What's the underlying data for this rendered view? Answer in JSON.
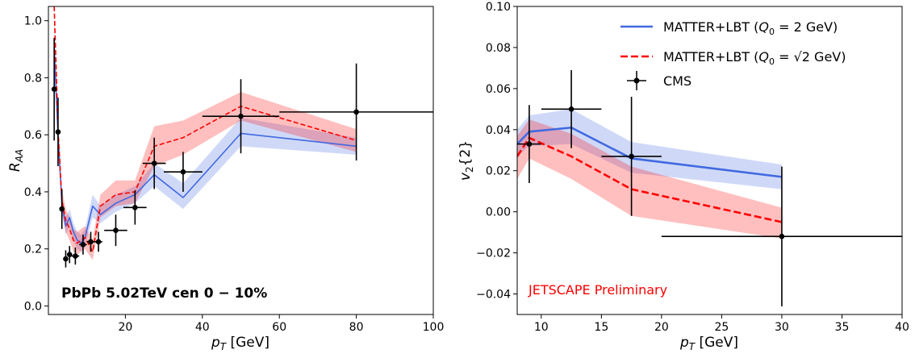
{
  "chart_data": [
    {
      "type": "line",
      "xlabel": "p_T [GeV]",
      "ylabel": "R_AA",
      "xlim": [
        0,
        100
      ],
      "ylim": [
        -0.03,
        1.05
      ],
      "xticks": [
        20,
        40,
        60,
        80,
        100
      ],
      "yticks": [
        0.0,
        0.2,
        0.4,
        0.6,
        0.8,
        1.0
      ],
      "xtick_labels": [
        "20",
        "40",
        "60",
        "80",
        "100"
      ],
      "ytick_labels": [
        "0.0",
        "0.2",
        "0.4",
        "0.6",
        "0.8",
        "1.0"
      ],
      "annotation": "PbPb 5.02TeV cen 0 − 10%",
      "grid": false,
      "series": [
        {
          "color": "#4169e1",
          "style": "solid",
          "x": [
            1.5,
            2.5,
            3.5,
            4.5,
            5.5,
            6.5,
            7.5,
            8.5,
            9.5,
            11.5,
            13.5,
            17.5,
            22.5,
            27.5,
            35,
            50,
            80
          ],
          "y": [
            0.9,
            0.6,
            0.36,
            0.28,
            0.31,
            0.26,
            0.23,
            0.22,
            0.24,
            0.35,
            0.32,
            0.36,
            0.39,
            0.46,
            0.38,
            0.605,
            0.56
          ],
          "band_low": [
            0.86,
            0.57,
            0.33,
            0.25,
            0.28,
            0.23,
            0.2,
            0.19,
            0.21,
            0.31,
            0.29,
            0.33,
            0.36,
            0.42,
            0.34,
            0.56,
            0.53
          ],
          "band_high": [
            0.97,
            0.64,
            0.39,
            0.31,
            0.34,
            0.29,
            0.26,
            0.25,
            0.27,
            0.39,
            0.35,
            0.39,
            0.42,
            0.5,
            0.43,
            0.66,
            0.59
          ]
        },
        {
          "color": "#ff0000",
          "style": "dashed",
          "x": [
            1.5,
            2.5,
            3.5,
            4.5,
            5.5,
            6.5,
            7.5,
            8.5,
            9.5,
            11.5,
            13.5,
            17.5,
            22.5,
            27.5,
            35,
            50,
            80
          ],
          "y": [
            1.05,
            0.62,
            0.37,
            0.3,
            0.27,
            0.23,
            0.22,
            0.23,
            0.24,
            0.19,
            0.35,
            0.39,
            0.4,
            0.56,
            0.59,
            0.7,
            0.58
          ],
          "band_low": [
            0.99,
            0.58,
            0.33,
            0.26,
            0.23,
            0.19,
            0.18,
            0.19,
            0.2,
            0.16,
            0.31,
            0.35,
            0.36,
            0.49,
            0.53,
            0.65,
            0.54
          ],
          "band_high": [
            1.05,
            0.66,
            0.41,
            0.34,
            0.31,
            0.27,
            0.26,
            0.27,
            0.28,
            0.23,
            0.39,
            0.44,
            0.44,
            0.63,
            0.65,
            0.75,
            0.62
          ]
        },
        {
          "name": "CMS",
          "color": "#000000",
          "style": "points",
          "x": [
            1.5,
            2.5,
            3.5,
            4.5,
            5.5,
            7,
            9,
            11,
            13,
            17.5,
            22.5,
            27.5,
            35,
            50,
            80
          ],
          "xerr": [
            0.5,
            0.5,
            0.5,
            0.5,
            0.5,
            1,
            1,
            1,
            1,
            3,
            3,
            3,
            5,
            10,
            20
          ],
          "y": [
            0.76,
            0.61,
            0.34,
            0.165,
            0.18,
            0.175,
            0.215,
            0.225,
            0.225,
            0.265,
            0.345,
            0.5,
            0.47,
            0.665,
            0.68
          ],
          "yerr": [
            0.18,
            0.12,
            0.07,
            0.03,
            0.03,
            0.03,
            0.035,
            0.035,
            0.035,
            0.055,
            0.06,
            0.09,
            0.07,
            0.13,
            0.17
          ]
        }
      ]
    },
    {
      "type": "line",
      "xlabel": "p_T [GeV]",
      "ylabel": "v_2{2}",
      "xlim": [
        8,
        40
      ],
      "ylim": [
        -0.05,
        0.1
      ],
      "xticks": [
        10,
        15,
        20,
        25,
        30,
        35,
        40
      ],
      "yticks": [
        -0.04,
        -0.02,
        0.0,
        0.02,
        0.04,
        0.06,
        0.08,
        0.1
      ],
      "xtick_labels": [
        "10",
        "15",
        "20",
        "25",
        "30",
        "35",
        "40"
      ],
      "ytick_labels": [
        "−0.04",
        "−0.02",
        "0.00",
        "0.02",
        "0.04",
        "0.06",
        "0.08",
        "0.10"
      ],
      "annotation": "JETSCAPE Preliminary",
      "legend_position": "top-right",
      "grid": false,
      "series": [
        {
          "name": "MATTER+LBT (Q_0 = 2 GeV)",
          "color": "#4169e1",
          "style": "solid",
          "x": [
            8,
            9,
            12.5,
            17.5,
            30
          ],
          "y": [
            0.033,
            0.039,
            0.041,
            0.026,
            0.017
          ],
          "band_low": [
            0.027,
            0.032,
            0.033,
            0.019,
            0.011
          ],
          "band_high": [
            0.04,
            0.047,
            0.05,
            0.034,
            0.023
          ]
        },
        {
          "name": "MATTER+LBT (Q_0 = √2 GeV)",
          "color": "#ff0000",
          "style": "dashed",
          "x": [
            8,
            9,
            12.5,
            17.5,
            30
          ],
          "y": [
            0.027,
            0.036,
            0.027,
            0.011,
            -0.005
          ],
          "band_low": [
            0.016,
            0.026,
            0.016,
            -0.002,
            -0.013
          ],
          "band_high": [
            0.037,
            0.045,
            0.038,
            0.022,
            0.002
          ]
        },
        {
          "name": "CMS",
          "color": "#000000",
          "style": "points",
          "x": [
            9,
            12.5,
            17.5,
            30
          ],
          "xerr": [
            1,
            2.5,
            2.5,
            10
          ],
          "y": [
            0.033,
            0.05,
            0.027,
            -0.012
          ],
          "yerr": [
            0.019,
            0.019,
            0.029,
            0.034
          ]
        }
      ]
    }
  ]
}
